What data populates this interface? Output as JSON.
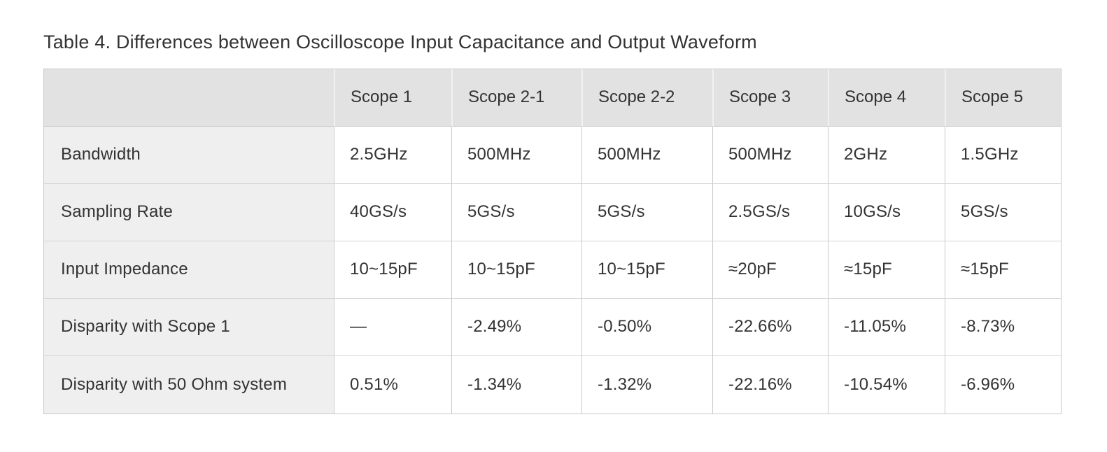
{
  "page": {
    "title": "Table 4. Differences between Oscilloscope Input Capacitance and Output Waveform"
  },
  "table": {
    "columns": [
      "",
      "Scope 1",
      "Scope 2-1",
      "Scope 2-2",
      "Scope 3",
      "Scope 4",
      "Scope 5"
    ],
    "rows": [
      {
        "label": "Bandwidth",
        "values": [
          "2.5GHz",
          "500MHz",
          "500MHz",
          "500MHz",
          "2GHz",
          "1.5GHz"
        ]
      },
      {
        "label": "Sampling Rate",
        "values": [
          "40GS/s",
          "5GS/s",
          "5GS/s",
          "2.5GS/s",
          "10GS/s",
          "5GS/s"
        ]
      },
      {
        "label": "Input Impedance",
        "values": [
          "10~15pF",
          "10~15pF",
          "10~15pF",
          "≈20pF",
          "≈15pF",
          "≈15pF"
        ]
      },
      {
        "label": "Disparity with Scope 1",
        "values": [
          "—",
          "-2.49%",
          "-0.50%",
          "-22.66%",
          "-11.05%",
          "-8.73%"
        ]
      },
      {
        "label": "Disparity with 50 Ohm system",
        "values": [
          "0.51%",
          "-1.34%",
          "-1.32%",
          "-22.16%",
          "-10.54%",
          "-6.96%"
        ]
      }
    ],
    "colors": {
      "header_background": "#e2e2e2",
      "label_column_background": "#efefef",
      "cell_background": "#ffffff",
      "border": "#c9c9c9",
      "header_divider": "#f1f1f1",
      "text": "#333333"
    }
  }
}
